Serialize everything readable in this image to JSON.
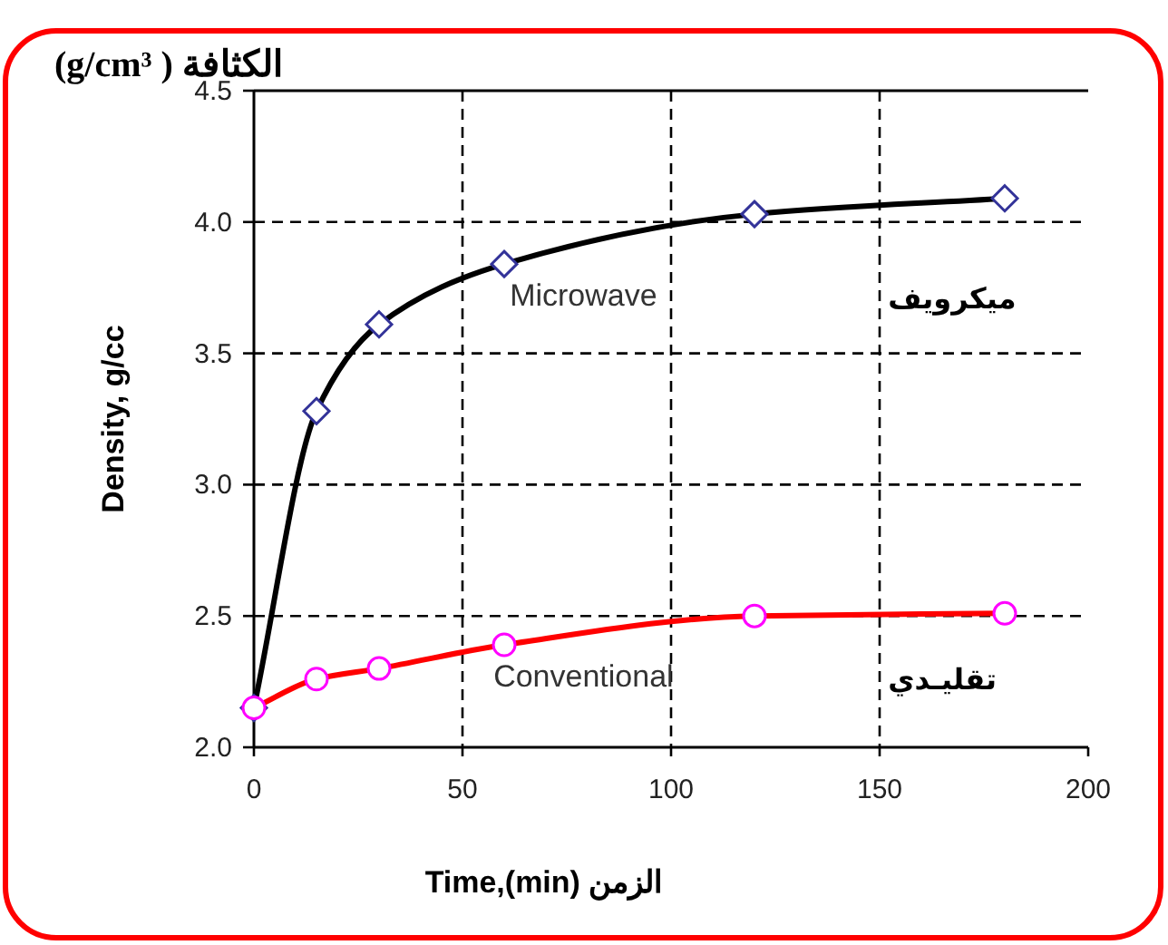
{
  "chart_data": {
    "type": "line",
    "xlabel": "Time,(min) الزمن",
    "ylabel": "Density, g/cc",
    "y2label": "(g/cm³ ) الكثافة",
    "x": [
      0,
      15,
      30,
      60,
      120,
      180
    ],
    "series": [
      {
        "name": "Microwave",
        "color": "#000000",
        "marker": "diamond",
        "values": [
          2.15,
          3.28,
          3.61,
          3.84,
          4.03,
          4.09
        ]
      },
      {
        "name": "Conventional",
        "color": "#ff0000",
        "marker": "circle",
        "values": [
          2.15,
          2.26,
          2.3,
          2.39,
          2.5,
          2.51
        ]
      }
    ],
    "annotations": [
      "ميكرويف",
      "تقليـدي"
    ],
    "xlim": [
      0,
      200
    ],
    "ylim": [
      2.0,
      4.5
    ],
    "xticks": [
      0,
      50,
      100,
      150,
      200
    ],
    "yticks": [
      {
        "value": 2.0,
        "label": "2.0"
      },
      2.5,
      {
        "value": 3.0,
        "label": "3.0"
      },
      3.5,
      {
        "value": 4.0,
        "label": "4.0"
      },
      4.5
    ],
    "grid": true,
    "line_style": "solid"
  }
}
